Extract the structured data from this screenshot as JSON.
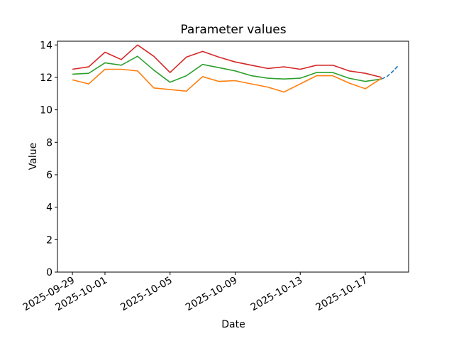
{
  "chart_data": {
    "type": "line",
    "title": "Parameter values",
    "xlabel": "Date",
    "ylabel": "Value",
    "grid": false,
    "legend": null,
    "plot_background": "#ffffff",
    "spine_color": "#000000",
    "dates": [
      "2025-09-29",
      "2025-09-30",
      "2025-10-01",
      "2025-10-02",
      "2025-10-03",
      "2025-10-04",
      "2025-10-05",
      "2025-10-06",
      "2025-10-07",
      "2025-10-08",
      "2025-10-09",
      "2025-10-10",
      "2025-10-11",
      "2025-10-12",
      "2025-10-13",
      "2025-10-14",
      "2025-10-15",
      "2025-10-16",
      "2025-10-17",
      "2025-10-18"
    ],
    "series": [
      {
        "name": "red-series",
        "color": "#d62728",
        "style": "solid",
        "x_day_offsets": [
          0,
          1,
          2,
          3,
          4,
          5,
          6,
          7,
          8,
          9,
          10,
          11,
          12,
          13,
          14,
          15,
          16,
          17,
          18,
          19
        ],
        "values": [
          12.5,
          12.65,
          13.55,
          13.1,
          14.0,
          13.3,
          12.3,
          13.25,
          13.6,
          13.25,
          12.95,
          12.75,
          12.55,
          12.65,
          12.5,
          12.75,
          12.75,
          12.4,
          12.25,
          12.0
        ]
      },
      {
        "name": "green-series",
        "color": "#2ca02c",
        "style": "solid",
        "x_day_offsets": [
          0,
          1,
          2,
          3,
          4,
          5,
          6,
          7,
          8,
          9,
          10,
          11,
          12,
          13,
          14,
          15,
          16,
          17,
          18,
          19
        ],
        "values": [
          12.2,
          12.25,
          12.9,
          12.75,
          13.3,
          12.45,
          11.7,
          12.1,
          12.8,
          12.6,
          12.4,
          12.1,
          11.95,
          11.9,
          11.95,
          12.3,
          12.3,
          11.95,
          11.75,
          11.9
        ]
      },
      {
        "name": "orange-series",
        "color": "#ff7f0e",
        "style": "solid",
        "x_day_offsets": [
          0,
          1,
          2,
          3,
          4,
          5,
          6,
          7,
          8,
          9,
          10,
          11,
          12,
          13,
          14,
          15,
          16,
          17,
          18,
          19
        ],
        "values": [
          11.85,
          11.6,
          12.5,
          12.5,
          12.4,
          11.35,
          11.25,
          11.15,
          12.05,
          11.75,
          11.8,
          11.6,
          11.4,
          11.1,
          11.6,
          12.1,
          12.1,
          11.65,
          11.3,
          11.95
        ]
      },
      {
        "name": "blue-dashed-series",
        "color": "#1f77b4",
        "style": "dashed",
        "x_day_offsets": [
          19,
          19.33,
          19.67,
          20
        ],
        "values": [
          11.9,
          12.05,
          12.35,
          12.7
        ]
      }
    ],
    "x_ticks": [
      {
        "day_offset": 0,
        "label": "2025-09-29"
      },
      {
        "day_offset": 2,
        "label": "2025-10-01"
      },
      {
        "day_offset": 6,
        "label": "2025-10-05"
      },
      {
        "day_offset": 10,
        "label": "2025-10-09"
      },
      {
        "day_offset": 14,
        "label": "2025-10-13"
      },
      {
        "day_offset": 18,
        "label": "2025-10-17"
      }
    ],
    "y_ticks": [
      0,
      2,
      4,
      6,
      8,
      10,
      12,
      14
    ],
    "xlim_day_offsets": [
      -0.92,
      20.66
    ],
    "ylim": [
      0,
      14.23
    ]
  }
}
